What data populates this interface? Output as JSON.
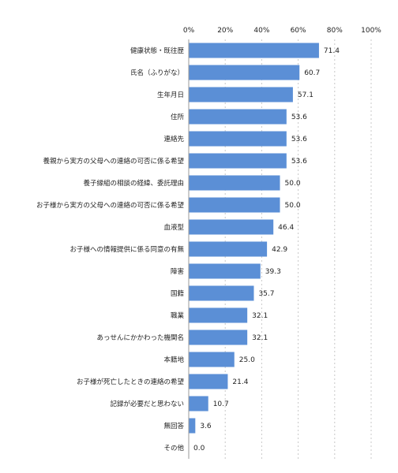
{
  "chart_data": {
    "type": "bar",
    "orientation": "horizontal",
    "categories": [
      "健康状態・既往歴",
      "氏名（ふりがな）",
      "生年月日",
      "住所",
      "連絡先",
      "養親から実方の父母への連絡の可否に係る希望",
      "養子縁組の相談の経緯、委託理由",
      "お子様から実方の父母への連絡の可否に係る希望",
      "血液型",
      "お子様への情報提供に係る同意の有無",
      "障害",
      "国籍",
      "職業",
      "あっせんにかかわった機関名",
      "本籍地",
      "お子様が死亡したときの連絡の希望",
      "記録が必要だと思わない",
      "無回答",
      "その他"
    ],
    "values": [
      71.4,
      60.7,
      57.1,
      53.6,
      53.6,
      53.6,
      50.0,
      50.0,
      46.4,
      42.9,
      39.3,
      35.7,
      32.1,
      32.1,
      25.0,
      21.4,
      10.7,
      3.6,
      0.0
    ],
    "value_labels": [
      "71.4",
      "60.7",
      "57.1",
      "53.6",
      "53.6",
      "53.6",
      "50.0",
      "50.0",
      "46.4",
      "42.9",
      "39.3",
      "35.7",
      "32.1",
      "32.1",
      "25.0",
      "21.4",
      "10.7",
      "3.6",
      "0.0"
    ],
    "x_ticks": [
      "0%",
      "20%",
      "40%",
      "60%",
      "80%",
      "100%"
    ],
    "xlim": [
      0,
      100
    ],
    "grid": true,
    "bar_color": "#5b8fd6",
    "title": "",
    "xlabel": "",
    "ylabel": ""
  }
}
